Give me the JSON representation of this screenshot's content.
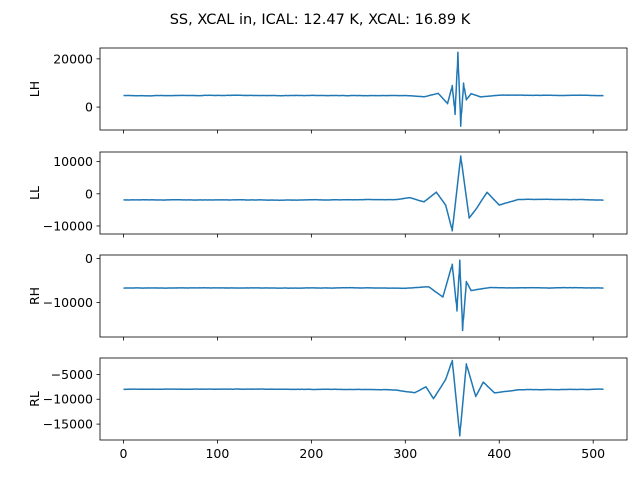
{
  "chart_data": {
    "type": "line",
    "title": "SS, XCAL in, ICAL: 12.47 K, XCAL: 16.89 K",
    "x_range": [
      0,
      511
    ],
    "xlim": [
      -25,
      536
    ],
    "x_ticks": [
      0,
      100,
      200,
      300,
      400,
      500
    ],
    "x_tick_labels": [
      "0",
      "100",
      "200",
      "300",
      "400",
      "500"
    ],
    "sharex": true,
    "grid": false,
    "line_color": "#1f77b4",
    "panels": [
      {
        "name": "LH",
        "ylabel": "LH",
        "ylim": [
          -9500,
          24500
        ],
        "y_ticks": [
          0,
          20000
        ],
        "y_tick_labels": [
          "0",
          "20000"
        ],
        "baseline": 4800,
        "peak_index": 356,
        "peak_max": 22800,
        "peak_min": -7900,
        "x": [
          0,
          100,
          200,
          300,
          320,
          335,
          345,
          350,
          353,
          356,
          359,
          362,
          365,
          370,
          380,
          400,
          511
        ],
        "y": [
          4800,
          4800,
          4800,
          4800,
          4300,
          5800,
          1500,
          9000,
          -3000,
          22800,
          -7900,
          10000,
          3000,
          5600,
          4300,
          4900,
          4800
        ]
      },
      {
        "name": "LL",
        "ylabel": "LL",
        "ylim": [
          -12500,
          13000
        ],
        "y_ticks": [
          -10000,
          0,
          10000
        ],
        "y_tick_labels": [
          "−10000",
          "0",
          "10000"
        ],
        "baseline": -1900,
        "peak_index": 359,
        "peak_max": 11800,
        "peak_min": -11500,
        "x": [
          0,
          100,
          200,
          290,
          305,
          320,
          333,
          343,
          350,
          359,
          368,
          377,
          387,
          400,
          420,
          511
        ],
        "y": [
          -1900,
          -1900,
          -1900,
          -1800,
          -1200,
          -2500,
          500,
          -3500,
          -11500,
          11800,
          -7500,
          -4000,
          500,
          -3500,
          -1700,
          -1900
        ]
      },
      {
        "name": "RH",
        "ylabel": "RH",
        "ylim": [
          -17800,
          800
        ],
        "y_ticks": [
          -10000,
          0
        ],
        "y_tick_labels": [
          "−10000",
          "0"
        ],
        "baseline": -6700,
        "peak_index": 358,
        "peak_max": -300,
        "peak_min": -16300,
        "x": [
          0,
          100,
          200,
          300,
          325,
          340,
          350,
          355,
          358,
          361,
          365,
          370,
          390,
          511
        ],
        "y": [
          -6700,
          -6700,
          -6700,
          -6700,
          -6400,
          -8700,
          -1200,
          -11800,
          -300,
          -16300,
          -5200,
          -7300,
          -6600,
          -6700
        ]
      },
      {
        "name": "RL",
        "ylabel": "RL",
        "ylim": [
          -18200,
          -1700
        ],
        "y_ticks": [
          -15000,
          -10000,
          -5000
        ],
        "y_tick_labels": [
          "−15000",
          "−10000",
          "−5000"
        ],
        "baseline": -8000,
        "peak_index": 358,
        "peak_max": -2200,
        "peak_min": -17400,
        "x": [
          0,
          100,
          200,
          290,
          310,
          322,
          330,
          343,
          350,
          358,
          365,
          375,
          383,
          395,
          420,
          511
        ],
        "y": [
          -8000,
          -8000,
          -8000,
          -8100,
          -8700,
          -7500,
          -9900,
          -6000,
          -2200,
          -17400,
          -2900,
          -9500,
          -6600,
          -8800,
          -8100,
          -8000
        ]
      }
    ]
  }
}
